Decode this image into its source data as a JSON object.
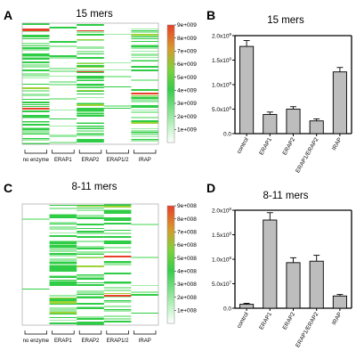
{
  "panels": {
    "A": {
      "label": "A",
      "title": "15 mers"
    },
    "B": {
      "label": "B",
      "title": "15 mers"
    },
    "C": {
      "label": "C",
      "title": "8-11 mers"
    },
    "D": {
      "label": "D",
      "title": "8-11 mers"
    }
  },
  "heatmap_groups": [
    "no enzyme",
    "ERAP1",
    "ERAP2",
    "ERAP1/2",
    "IRAP"
  ],
  "colors": {
    "high": "#e8402a",
    "mid": "#36cc4a",
    "low": "#ffffff",
    "bar": "#bdbdbd"
  },
  "chart_data": [
    {
      "type": "heatmap",
      "title": "15 mers",
      "columns": [
        "no enzyme",
        "ERAP1",
        "ERAP2",
        "ERAP1/2",
        "IRAP"
      ],
      "colorbar_ticks": [
        "9e+009",
        "8e+009",
        "7e+009",
        "6e+009",
        "5e+009",
        "4e+009",
        "3e+009",
        "2e+009",
        "1e+009"
      ],
      "colorbar_range": [
        0,
        9000000000
      ]
    },
    {
      "type": "bar",
      "title": "15 mers",
      "categories": [
        "control",
        "ERAP1",
        "ERAP2",
        "ERAP1/ERAP2",
        "IRAP"
      ],
      "values": [
        1780000000,
        390000000,
        500000000,
        260000000,
        1260000000
      ],
      "errors": [
        120000000,
        50000000,
        50000000,
        40000000,
        90000000
      ],
      "ylim": [
        0,
        2000000000
      ],
      "yticks": [
        0,
        500000000,
        1000000000,
        1500000000,
        2000000000
      ],
      "yticklabels_mantissa": [
        "0.0",
        "5.0x10",
        "1.0x10",
        "1.5x10",
        "2.0x10"
      ],
      "yticklabels_exp": [
        "",
        "8",
        "9",
        "9",
        "9"
      ]
    },
    {
      "type": "heatmap",
      "title": "8-11 mers",
      "columns": [
        "no enzyme",
        "ERAP1",
        "ERAP2",
        "ERAP1/2",
        "IRAP"
      ],
      "colorbar_ticks": [
        "9e+008",
        "8e+008",
        "7e+008",
        "6e+008",
        "5e+008",
        "4e+008",
        "3e+008",
        "2e+008",
        "1e+008"
      ],
      "colorbar_range": [
        0,
        900000000
      ]
    },
    {
      "type": "bar",
      "title": "8-11 mers",
      "categories": [
        "control",
        "ERAP1",
        "ERAP2",
        "ERAP1/ERAP2",
        "IRAP"
      ],
      "values": [
        8000000,
        180000000,
        93000000,
        96000000,
        25000000
      ],
      "errors": [
        2000000,
        15000000,
        10000000,
        12000000,
        3000000
      ],
      "ylim": [
        0,
        200000000
      ],
      "yticks": [
        0,
        50000000,
        100000000,
        150000000,
        200000000
      ],
      "yticklabels_mantissa": [
        "0.0",
        "5.0x10",
        "1.0x10",
        "1.5x10",
        "2.0x10"
      ],
      "yticklabels_exp": [
        "",
        "7",
        "8",
        "8",
        "8"
      ]
    }
  ]
}
